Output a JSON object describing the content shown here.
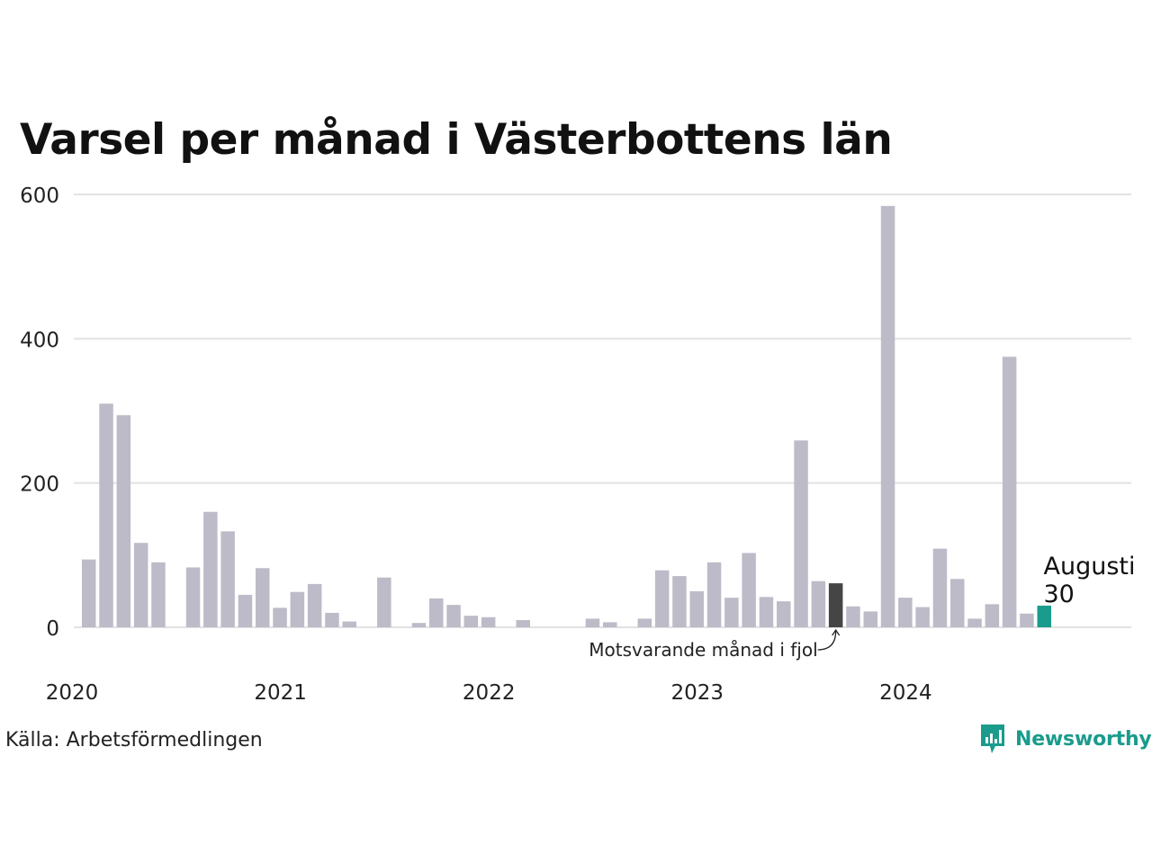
{
  "title": "Varsel per månad i Västerbottens län",
  "source": "Källa: Arbetsförmedlingen",
  "logo_text": "Newsworthy",
  "colors": {
    "bar": "#bdbbc8",
    "highlight": "#454545",
    "current": "#1a9b8c",
    "grid": "#e2e2e2"
  },
  "chart_data": {
    "type": "bar",
    "ylim": [
      0,
      600
    ],
    "yticks": [
      0,
      200,
      400,
      600
    ],
    "xticks": [
      "2020",
      "2021",
      "2022",
      "2023",
      "2024"
    ],
    "start": "2020-01",
    "values": [
      94,
      310,
      294,
      117,
      90,
      0,
      83,
      160,
      133,
      45,
      82,
      27,
      49,
      60,
      20,
      8,
      0,
      69,
      0,
      6,
      40,
      31,
      16,
      14,
      0,
      10,
      0,
      0,
      0,
      12,
      7,
      0,
      12,
      79,
      71,
      50,
      90,
      41,
      103,
      42,
      36,
      259,
      64,
      61,
      29,
      22,
      584,
      41,
      28,
      109,
      67,
      12,
      32,
      375,
      19,
      30
    ],
    "highlight_month": "2023-08",
    "current_month": "2024-08",
    "annotations": {
      "previous_year": "Motsvarande månad i fjol",
      "current_label": "Augusti",
      "current_value": "30"
    }
  }
}
